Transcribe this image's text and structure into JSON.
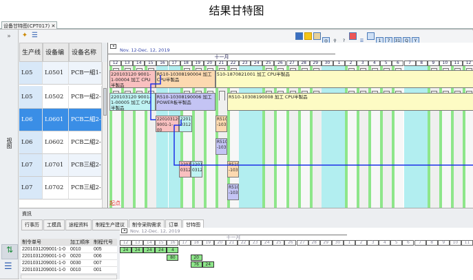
{
  "page_title": "结果甘特图",
  "doc_tab": {
    "label": "设备甘特图(CPT017)",
    "close": "✕"
  },
  "left_strip": {
    "expand": "»",
    "view_label": "视图"
  },
  "columns": [
    "生产线",
    "设备编号",
    "设备名称"
  ],
  "rows": [
    {
      "line": "L05",
      "code": "L0501",
      "name": "PCB一組1-1"
    },
    {
      "line": "L05",
      "code": "L0502",
      "name": "PCB一組2-2"
    },
    {
      "line": "L06",
      "code": "L0601",
      "name": "PCB二組2-1",
      "selected": true
    },
    {
      "line": "L06",
      "code": "L0602",
      "name": "PCB二組2-2"
    },
    {
      "line": "L07",
      "code": "L0701",
      "name": "PCB三組2-1"
    },
    {
      "line": "L07",
      "code": "L0702",
      "name": "PCB三組2-2"
    }
  ],
  "gantt": {
    "range": "Nov. 12-Dec. 12, 2019",
    "month": "十一月",
    "days": [
      "12",
      "13",
      "14",
      "15",
      "16",
      "17",
      "18",
      "19",
      "20",
      "21",
      "22",
      "23",
      "24",
      "25",
      "26",
      "27",
      "28",
      "29",
      "30",
      "1",
      "2",
      "3",
      "4",
      "5",
      "6",
      "7",
      "8",
      "9",
      "10",
      "11",
      "12"
    ],
    "weekend_days": [
      "16",
      "17",
      "23",
      "24",
      "30",
      "1",
      "7",
      "8"
    ],
    "start_label": "起点",
    "colors": {
      "pink": "#f9c0c0",
      "peach": "#fcd9b0",
      "yellow": "#fdfbc4",
      "cyan": "#bff3f3",
      "lavender": "#c4c4f4",
      "weekend": "#b2eef0",
      "workstripe": "#8ee68a",
      "link": "#1a2ee8"
    },
    "bars": [
      {
        "row": 0,
        "start": 0,
        "end": 3.9,
        "color": "pink",
        "text": "220103120 9001-1-00004 加工 CPU半製品"
      },
      {
        "row": 0,
        "start": 3.9,
        "end": 9,
        "color": "peach",
        "text": "R510-10308190004 加工 CPU半製品"
      },
      {
        "row": 0,
        "start": 9,
        "end": 31,
        "color": "yellow",
        "text": "510-1870821001 加工 CPU半製品"
      },
      {
        "row": 1,
        "start": 0,
        "end": 3.9,
        "color": "cyan",
        "text": "220103120 9001-1-00005 加工 CPU半製品"
      },
      {
        "row": 1,
        "start": 3.9,
        "end": 9,
        "color": "lavender",
        "text": "R510-10308190006 加工 POWER板半製品"
      },
      {
        "row": 1,
        "start": 10,
        "end": 31,
        "color": "yellow",
        "text": "R510-10308190008 加工 CPU半製品"
      },
      {
        "row": 2,
        "start": 3.9,
        "end": 5.9,
        "color": "pink",
        "text": "220103120 9001-1-00",
        "small": true
      },
      {
        "row": 2,
        "start": 5.9,
        "end": 7,
        "color": "cyan",
        "text": "2201 0312",
        "small": true
      },
      {
        "row": 2,
        "start": 9,
        "end": 10,
        "color": "peach",
        "text": "R510 -103",
        "small": true
      },
      {
        "row": 3,
        "start": 9,
        "end": 10,
        "color": "lavender",
        "text": "R510 -103",
        "small": true
      },
      {
        "row": 4,
        "start": 5.9,
        "end": 6.9,
        "color": "pink",
        "text": "2201 0312",
        "small": true
      },
      {
        "row": 4,
        "start": 6.9,
        "end": 7.9,
        "color": "cyan",
        "text": "2201 0312",
        "small": true
      },
      {
        "row": 4,
        "start": 10,
        "end": 11,
        "color": "peach",
        "text": "R510 -103",
        "small": true
      },
      {
        "row": 5,
        "start": 10,
        "end": 11,
        "color": "lavender",
        "text": "R510 -103",
        "small": true
      }
    ]
  },
  "bottom": {
    "title": "資訊",
    "tabs": [
      "行事历",
      "工模具",
      "途程资料",
      "制程生产建议",
      "制令采购需求",
      "订单",
      "甘特图"
    ],
    "active_tab": "甘特图",
    "table_headers": [
      "制令单号",
      "加工顺序",
      "制程代号"
    ],
    "table_rows": [
      [
        "2201031209001-1-0",
        "0010",
        "005"
      ],
      [
        "2201031209001-1-0",
        "0020",
        "006"
      ],
      [
        "2201031209001-1-0",
        "0030",
        "007"
      ],
      [
        "2201031209001-1-0",
        "0010",
        "001"
      ]
    ],
    "mini_bars": [
      {
        "row": 0,
        "day": 0,
        "value": "24"
      },
      {
        "row": 0,
        "day": 1,
        "value": "24"
      },
      {
        "row": 0,
        "day": 2,
        "value": "24"
      },
      {
        "row": 0,
        "day": 3,
        "value": "24"
      },
      {
        "row": 0,
        "day": 4,
        "value": "4"
      },
      {
        "row": 1,
        "day": 4,
        "value": "80"
      },
      {
        "row": 1,
        "day": 6,
        "value": "20"
      },
      {
        "row": 2,
        "day": 6,
        "value": "76"
      },
      {
        "row": 2,
        "day": 7,
        "value": "24"
      }
    ]
  }
}
